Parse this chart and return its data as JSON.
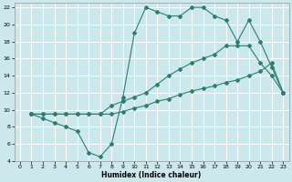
{
  "xlabel": "Humidex (Indice chaleur)",
  "bg_color": "#cce8ec",
  "grid_color": "#ffffff",
  "line_color": "#2e7d6e",
  "xlim": [
    -0.5,
    23.5
  ],
  "ylim": [
    4,
    22.5
  ],
  "line1_x": [
    1,
    2,
    3,
    4,
    5,
    6,
    7,
    8,
    9,
    10,
    11,
    12,
    13,
    14,
    15,
    16,
    17,
    18,
    19,
    20,
    21,
    22,
    23
  ],
  "line1_y": [
    9.5,
    9.0,
    8.5,
    8.0,
    7.5,
    5.0,
    4.5,
    6.0,
    11.5,
    19.0,
    22.0,
    21.5,
    21.0,
    21.0,
    22.0,
    22.0,
    21.0,
    20.5,
    18.0,
    20.5,
    18.0,
    15.0,
    12.0
  ],
  "line2_x": [
    1,
    2,
    3,
    4,
    5,
    6,
    7,
    8,
    9,
    10,
    11,
    12,
    13,
    14,
    15,
    16,
    17,
    18,
    19,
    20,
    21,
    22,
    23
  ],
  "line2_y": [
    9.5,
    9.5,
    9.5,
    9.5,
    9.5,
    9.5,
    9.5,
    9.5,
    9.8,
    10.2,
    10.5,
    11.0,
    11.3,
    11.8,
    12.2,
    12.5,
    12.8,
    13.2,
    13.5,
    14.0,
    14.5,
    15.5,
    12.0
  ],
  "line3_x": [
    1,
    2,
    3,
    4,
    5,
    6,
    7,
    8,
    9,
    10,
    11,
    12,
    13,
    14,
    15,
    16,
    17,
    18,
    19,
    20,
    21,
    22,
    23
  ],
  "line3_y": [
    9.5,
    9.5,
    9.5,
    9.5,
    9.5,
    9.5,
    9.5,
    10.5,
    11.0,
    11.5,
    12.0,
    13.0,
    14.0,
    14.8,
    15.5,
    16.0,
    16.5,
    17.5,
    17.5,
    17.5,
    15.5,
    14.0,
    12.0
  ]
}
